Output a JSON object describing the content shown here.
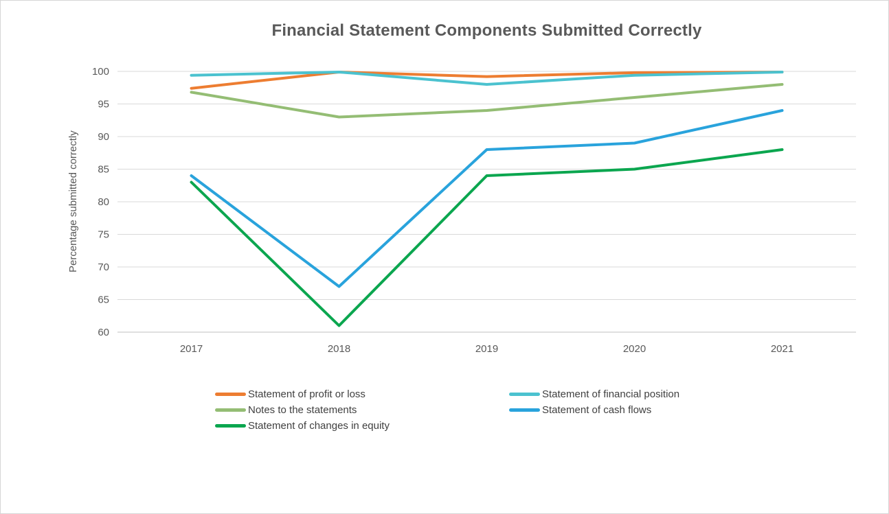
{
  "title": "Financial Statement Components Submitted Correctly",
  "chart_data": {
    "type": "line",
    "title": "Financial Statement Components Submitted Correctly",
    "xlabel": "",
    "ylabel": "Percentage submitted correctly",
    "categories": [
      "2017",
      "2018",
      "2019",
      "2020",
      "2021"
    ],
    "series": [
      {
        "name": "Statement of profit or loss",
        "color": "#ED7D31",
        "values": [
          97.4,
          99.9,
          99.2,
          99.8,
          99.9
        ]
      },
      {
        "name": "Statement of financial position",
        "color": "#4BC2CF",
        "values": [
          99.4,
          99.9,
          98.0,
          99.4,
          99.9
        ]
      },
      {
        "name": "Notes to the statements",
        "color": "#94BD74",
        "values": [
          96.8,
          93.0,
          94.0,
          96.0,
          98.0
        ]
      },
      {
        "name": "Statement of cash flows",
        "color": "#29A3DC",
        "values": [
          84.0,
          67.0,
          88.0,
          89.0,
          94.0
        ]
      },
      {
        "name": "Statement of changes in equity",
        "color": "#0BA64F",
        "values": [
          83.0,
          61.0,
          84.0,
          85.0,
          88.0
        ]
      }
    ],
    "ylim": [
      60,
      100
    ],
    "yticks": [
      60,
      65,
      70,
      75,
      80,
      85,
      90,
      95,
      100
    ],
    "grid": true,
    "legend_position": "bottom",
    "colors": {
      "gridline": "#D9D9D9",
      "axis_line": "#BFBFBF",
      "tick_text": "#595959",
      "title_text": "#595959",
      "legend_text": "#404040"
    }
  }
}
